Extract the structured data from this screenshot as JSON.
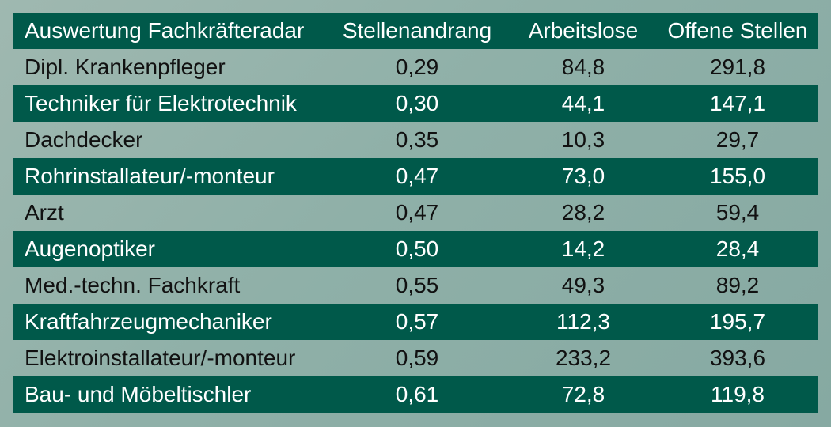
{
  "chart_data": {
    "type": "table",
    "colors": {
      "header_background": "#00594a",
      "stripe_background": "#00594a",
      "page_background": "#8fb0a8"
    },
    "columns": [
      "Auswertung Fachkräfteradar",
      "Stellenandrang",
      "Arbeitslose",
      "Offene Stellen"
    ],
    "rows": [
      [
        "Dipl. Krankenpfleger",
        "0,29",
        "84,8",
        "291,8"
      ],
      [
        "Techniker für Elektrotechnik",
        "0,30",
        "44,1",
        "147,1"
      ],
      [
        "Dachdecker",
        "0,35",
        "10,3",
        "29,7"
      ],
      [
        "Rohrinstallateur/-monteur",
        "0,47",
        "73,0",
        "155,0"
      ],
      [
        "Arzt",
        "0,47",
        "28,2",
        "59,4"
      ],
      [
        "Augenoptiker",
        "0,50",
        "14,2",
        "28,4"
      ],
      [
        "Med.-techn. Fachkraft",
        "0,55",
        "49,3",
        "89,2"
      ],
      [
        "Kraftfahrzeugmechaniker",
        "0,57",
        "112,3",
        "195,7"
      ],
      [
        "Elektroinstallateur/-monteur",
        "0,59",
        "233,2",
        "393,6"
      ],
      [
        "Bau- und Möbeltischler",
        "0,61",
        "72,8",
        "119,8"
      ]
    ]
  }
}
